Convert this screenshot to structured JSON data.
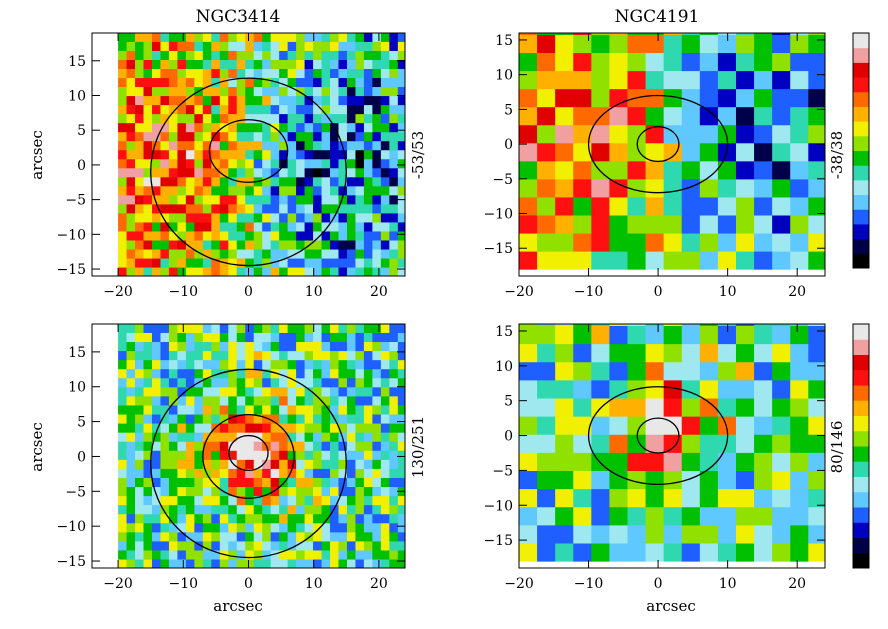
{
  "figure": {
    "titles": [
      "NGC3414",
      "NGC4191"
    ],
    "xlabel": "arcsec",
    "ylabel": "arcsec"
  },
  "colormap": [
    "#000000",
    "#00004a",
    "#0000c0",
    "#1f5fff",
    "#5fc8ff",
    "#9fe8f0",
    "#30d8b0",
    "#00c000",
    "#90e000",
    "#f0f000",
    "#ffb000",
    "#ff6a00",
    "#ff1010",
    "#e00000",
    "#f0a0a0",
    "#e8e8e8"
  ],
  "chart_data": [
    {
      "type": "heatmap",
      "title": "NGC3414",
      "panel": "top-left",
      "xlabel": "",
      "ylabel": "arcsec",
      "xlim": [
        -24,
        24
      ],
      "ylim": [
        -16,
        19
      ],
      "xticks": [
        -20,
        -10,
        0,
        10,
        20
      ],
      "yticks": [
        -15,
        -10,
        -5,
        0,
        5,
        10,
        15
      ],
      "colorbar_range_label": "-53/53",
      "colorbar_range": [
        -53,
        53
      ],
      "colorbar_shown": false,
      "field": "velocity",
      "map_region": {
        "x": [
          -20,
          23
        ],
        "y": [
          -16,
          18
        ]
      },
      "contours_elliptical": [
        {
          "cx": 0,
          "cy": 2,
          "rx": 6,
          "ry": 4.5
        },
        {
          "cx": 0,
          "cy": -1,
          "rx": 15,
          "ry": 13.5
        }
      ]
    },
    {
      "type": "heatmap",
      "title": "NGC4191",
      "panel": "top-right",
      "xlabel": "",
      "ylabel": "",
      "xlim": [
        -20,
        24
      ],
      "ylim": [
        -19,
        16
      ],
      "xticks": [
        -20,
        -10,
        0,
        10,
        20
      ],
      "yticks": [
        -15,
        -10,
        -5,
        0,
        5,
        10,
        15
      ],
      "colorbar_range_label": "-38/38",
      "colorbar_range": [
        -38,
        38
      ],
      "colorbar_shown": true,
      "field": "velocity",
      "map_region": {
        "x": [
          -20,
          24
        ],
        "y": [
          -18,
          16
        ]
      },
      "contours_elliptical": [
        {
          "cx": 0,
          "cy": 0,
          "rx": 3,
          "ry": 2.5
        },
        {
          "cx": 0,
          "cy": 0,
          "rx": 10,
          "ry": 7
        }
      ]
    },
    {
      "type": "heatmap",
      "title": "",
      "panel": "bottom-left",
      "xlabel": "arcsec",
      "ylabel": "arcsec",
      "xlim": [
        -24,
        24
      ],
      "ylim": [
        -16,
        19
      ],
      "xticks": [
        -20,
        -10,
        0,
        10,
        20
      ],
      "yticks": [
        -15,
        -10,
        -5,
        0,
        5,
        10,
        15
      ],
      "colorbar_range_label": "130/251",
      "colorbar_range": [
        130,
        251
      ],
      "colorbar_shown": false,
      "field": "dispersion",
      "map_region": {
        "x": [
          -20,
          23
        ],
        "y": [
          -16,
          18
        ]
      },
      "contours_elliptical": [
        {
          "cx": 0,
          "cy": 0.5,
          "rx": 3,
          "ry": 2.5
        },
        {
          "cx": 0,
          "cy": 0,
          "rx": 7,
          "ry": 6
        },
        {
          "cx": 0,
          "cy": -1,
          "rx": 15,
          "ry": 13.5
        }
      ]
    },
    {
      "type": "heatmap",
      "title": "",
      "panel": "bottom-right",
      "xlabel": "arcsec",
      "ylabel": "",
      "xlim": [
        -20,
        24
      ],
      "ylim": [
        -19,
        16
      ],
      "xticks": [
        -20,
        -10,
        0,
        10,
        20
      ],
      "yticks": [
        -15,
        -10,
        -5,
        0,
        5,
        10,
        15
      ],
      "colorbar_range_label": "80/146",
      "colorbar_range": [
        80,
        146
      ],
      "colorbar_shown": true,
      "field": "dispersion",
      "map_region": {
        "x": [
          -20,
          24
        ],
        "y": [
          -18,
          16
        ]
      },
      "contours_elliptical": [
        {
          "cx": 0,
          "cy": 0,
          "rx": 3,
          "ry": 2.5
        },
        {
          "cx": 0,
          "cy": 0,
          "rx": 10,
          "ry": 7
        }
      ]
    }
  ]
}
